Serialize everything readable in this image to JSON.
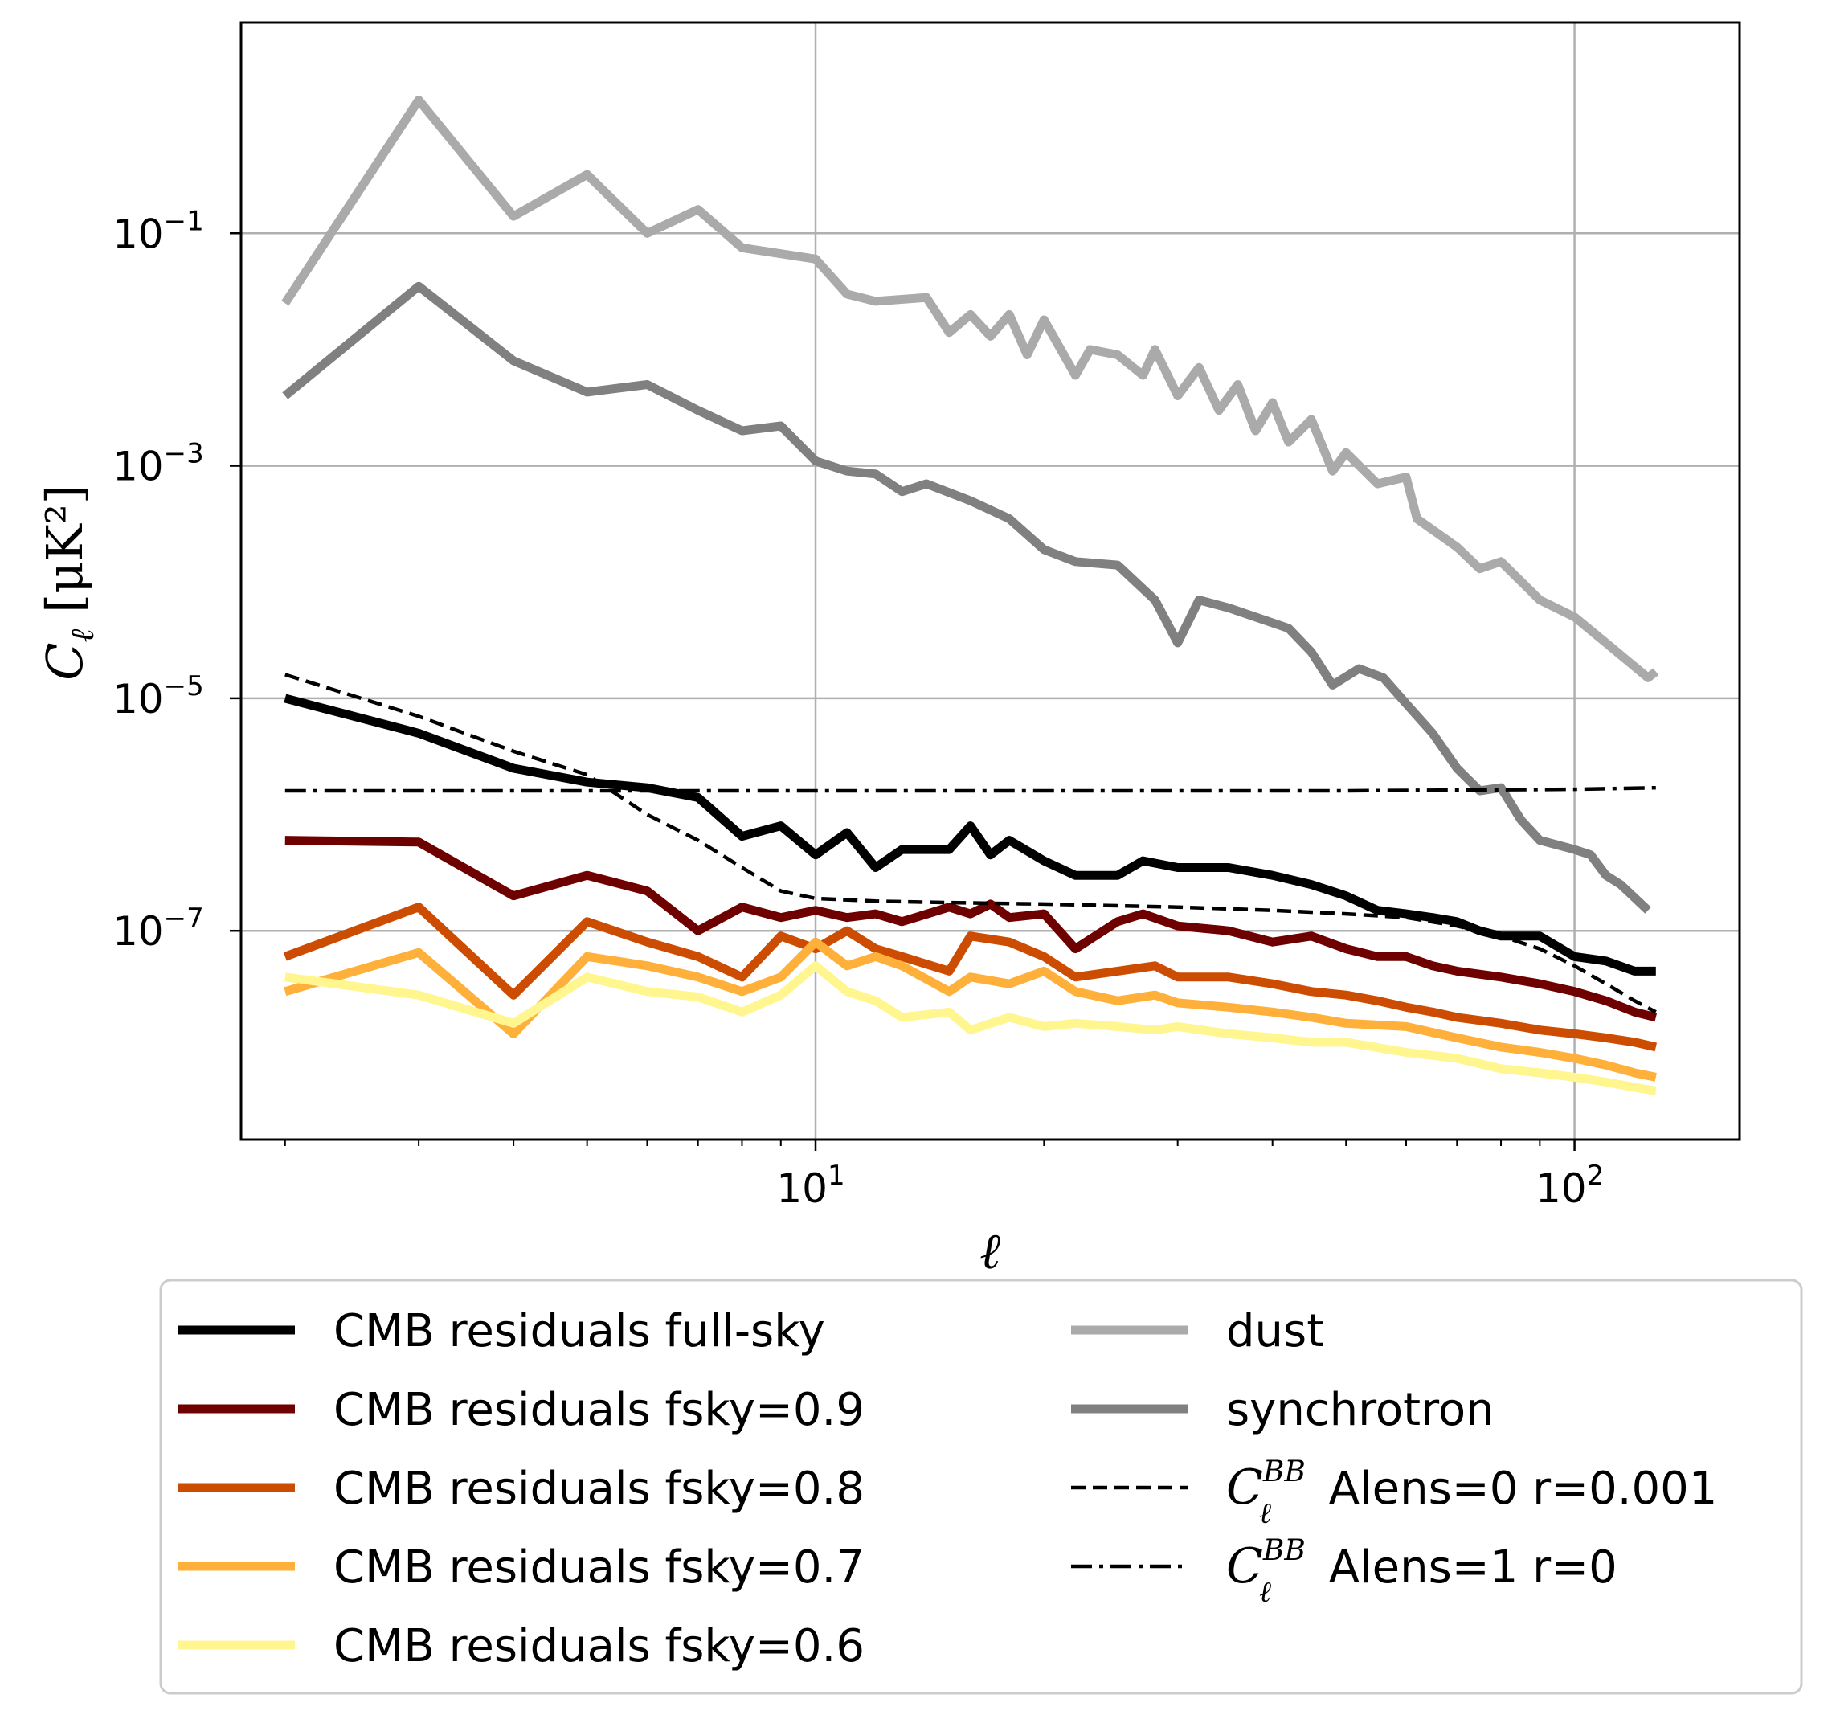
{
  "chart_data": {
    "type": "line",
    "xscale": "log",
    "yscale": "log",
    "xlim": [
      1.75,
      165
    ],
    "ylim": [
      1.6e-09,
      6.5
    ],
    "xlabel": "ℓ",
    "ylabel_main": "C",
    "ylabel_sub": "ℓ",
    "ylabel_rest": " [μK²]",
    "grid": true,
    "legend_location": "below",
    "x_ticks": [
      {
        "value": 10,
        "base": "10",
        "exp": "1"
      },
      {
        "value": 100,
        "base": "10",
        "exp": "2"
      }
    ],
    "y_ticks": [
      {
        "value": 0.1,
        "base": "10",
        "exp": "−1"
      },
      {
        "value": 0.001,
        "base": "10",
        "exp": "−3"
      },
      {
        "value": 1e-05,
        "base": "10",
        "exp": "−5"
      },
      {
        "value": 1e-07,
        "base": "10",
        "exp": "−7"
      }
    ],
    "series": [
      {
        "name": "dust",
        "color": "#aaaaaa",
        "style": "solid",
        "width": 11,
        "points": [
          [
            2,
            0.025
          ],
          [
            3,
            1.4
          ],
          [
            4,
            0.14
          ],
          [
            5,
            0.32
          ],
          [
            6,
            0.1
          ],
          [
            7,
            0.16
          ],
          [
            8,
            0.075
          ],
          [
            10,
            0.06
          ],
          [
            11,
            0.03
          ],
          [
            12,
            0.026
          ],
          [
            14,
            0.028
          ],
          [
            15,
            0.014
          ],
          [
            16,
            0.02
          ],
          [
            17,
            0.013
          ],
          [
            18,
            0.02
          ],
          [
            19,
            0.009
          ],
          [
            20,
            0.018
          ],
          [
            22,
            0.006
          ],
          [
            23,
            0.01
          ],
          [
            25,
            0.009
          ],
          [
            27,
            0.006
          ],
          [
            28,
            0.01
          ],
          [
            30,
            0.004
          ],
          [
            32,
            0.007
          ],
          [
            34,
            0.003
          ],
          [
            36,
            0.005
          ],
          [
            38,
            0.002
          ],
          [
            40,
            0.0035
          ],
          [
            42,
            0.0016
          ],
          [
            45,
            0.0025
          ],
          [
            48,
            0.0009
          ],
          [
            50,
            0.0013
          ],
          [
            55,
            0.0007
          ],
          [
            60,
            0.0008
          ],
          [
            62,
            0.00035
          ],
          [
            70,
            0.0002
          ],
          [
            75,
            0.00013
          ],
          [
            80,
            0.00015
          ],
          [
            90,
            7e-05
          ],
          [
            100,
            5e-05
          ],
          [
            110,
            3e-05
          ],
          [
            125,
            1.5e-05
          ],
          [
            128,
            1.7e-05
          ]
        ]
      },
      {
        "name": "synchrotron",
        "color": "#808080",
        "style": "solid",
        "width": 11,
        "points": [
          [
            2,
            0.004
          ],
          [
            3,
            0.035
          ],
          [
            4,
            0.008
          ],
          [
            5,
            0.0043
          ],
          [
            6,
            0.005
          ],
          [
            7,
            0.003
          ],
          [
            8,
            0.002
          ],
          [
            9,
            0.0022
          ],
          [
            10,
            0.0011
          ],
          [
            11,
            0.0009
          ],
          [
            12,
            0.00085
          ],
          [
            13,
            0.0006
          ],
          [
            14,
            0.0007
          ],
          [
            16,
            0.0005
          ],
          [
            18,
            0.00035
          ],
          [
            20,
            0.00019
          ],
          [
            22,
            0.00015
          ],
          [
            25,
            0.00014
          ],
          [
            28,
            7e-05
          ],
          [
            30,
            3e-05
          ],
          [
            32,
            7e-05
          ],
          [
            35,
            6e-05
          ],
          [
            38,
            5e-05
          ],
          [
            42,
            4e-05
          ],
          [
            45,
            2.5e-05
          ],
          [
            48,
            1.3e-05
          ],
          [
            52,
            1.8e-05
          ],
          [
            56,
            1.5e-05
          ],
          [
            60,
            9e-06
          ],
          [
            65,
            5e-06
          ],
          [
            70,
            2.5e-06
          ],
          [
            75,
            1.6e-06
          ],
          [
            80,
            1.7e-06
          ],
          [
            85,
            9e-07
          ],
          [
            90,
            6e-07
          ],
          [
            100,
            5e-07
          ],
          [
            105,
            4.5e-07
          ],
          [
            110,
            3e-07
          ],
          [
            115,
            2.5e-07
          ],
          [
            125,
            1.5e-07
          ]
        ]
      },
      {
        "name": "CMB residuals full-sky",
        "color": "#000000",
        "style": "solid",
        "width": 11,
        "points": [
          [
            2,
            1e-05
          ],
          [
            3,
            5e-06
          ],
          [
            4,
            2.5e-06
          ],
          [
            5,
            1.9e-06
          ],
          [
            6,
            1.7e-06
          ],
          [
            7,
            1.4e-06
          ],
          [
            8,
            6.5e-07
          ],
          [
            9,
            8e-07
          ],
          [
            10,
            4.5e-07
          ],
          [
            11,
            7e-07
          ],
          [
            12,
            3.5e-07
          ],
          [
            13,
            5e-07
          ],
          [
            15,
            5e-07
          ],
          [
            16,
            8e-07
          ],
          [
            17,
            4.5e-07
          ],
          [
            18,
            6e-07
          ],
          [
            20,
            4e-07
          ],
          [
            22,
            3e-07
          ],
          [
            25,
            3e-07
          ],
          [
            27,
            4e-07
          ],
          [
            30,
            3.5e-07
          ],
          [
            35,
            3.5e-07
          ],
          [
            40,
            3e-07
          ],
          [
            45,
            2.5e-07
          ],
          [
            50,
            2e-07
          ],
          [
            55,
            1.5e-07
          ],
          [
            60,
            1.4e-07
          ],
          [
            65,
            1.3e-07
          ],
          [
            70,
            1.2e-07
          ],
          [
            75,
            1e-07
          ],
          [
            80,
            9e-08
          ],
          [
            90,
            9e-08
          ],
          [
            100,
            6e-08
          ],
          [
            110,
            5.5e-08
          ],
          [
            120,
            4.5e-08
          ],
          [
            128,
            4.5e-08
          ]
        ]
      },
      {
        "name": "CMB residuals fsky=0.9",
        "color": "#6e0000",
        "style": "solid",
        "width": 11,
        "points": [
          [
            2,
            6e-07
          ],
          [
            3,
            5.8e-07
          ],
          [
            4,
            2e-07
          ],
          [
            5,
            3e-07
          ],
          [
            6,
            2.2e-07
          ],
          [
            7,
            1e-07
          ],
          [
            8,
            1.6e-07
          ],
          [
            9,
            1.3e-07
          ],
          [
            10,
            1.5e-07
          ],
          [
            11,
            1.3e-07
          ],
          [
            12,
            1.4e-07
          ],
          [
            13,
            1.2e-07
          ],
          [
            15,
            1.6e-07
          ],
          [
            16,
            1.4e-07
          ],
          [
            17,
            1.7e-07
          ],
          [
            18,
            1.3e-07
          ],
          [
            20,
            1.4e-07
          ],
          [
            22,
            7e-08
          ],
          [
            25,
            1.2e-07
          ],
          [
            27,
            1.4e-07
          ],
          [
            30,
            1.1e-07
          ],
          [
            35,
            1e-07
          ],
          [
            40,
            8e-08
          ],
          [
            45,
            9e-08
          ],
          [
            50,
            7e-08
          ],
          [
            55,
            6e-08
          ],
          [
            60,
            6e-08
          ],
          [
            65,
            5e-08
          ],
          [
            70,
            4.5e-08
          ],
          [
            80,
            4e-08
          ],
          [
            90,
            3.5e-08
          ],
          [
            100,
            3e-08
          ],
          [
            110,
            2.5e-08
          ],
          [
            120,
            2e-08
          ],
          [
            128,
            1.8e-08
          ]
        ]
      },
      {
        "name": "CMB residuals fsky=0.8",
        "color": "#cc4c02",
        "style": "solid",
        "width": 11,
        "points": [
          [
            2,
            6e-08
          ],
          [
            3,
            1.6e-07
          ],
          [
            4,
            2.8e-08
          ],
          [
            5,
            1.2e-07
          ],
          [
            6,
            8e-08
          ],
          [
            7,
            6e-08
          ],
          [
            8,
            4e-08
          ],
          [
            9,
            9e-08
          ],
          [
            10,
            7e-08
          ],
          [
            11,
            1e-07
          ],
          [
            12,
            7e-08
          ],
          [
            13,
            6e-08
          ],
          [
            15,
            4.5e-08
          ],
          [
            16,
            9e-08
          ],
          [
            18,
            8e-08
          ],
          [
            20,
            6e-08
          ],
          [
            22,
            4e-08
          ],
          [
            25,
            4.5e-08
          ],
          [
            28,
            5e-08
          ],
          [
            30,
            4e-08
          ],
          [
            35,
            4e-08
          ],
          [
            40,
            3.5e-08
          ],
          [
            45,
            3e-08
          ],
          [
            50,
            2.8e-08
          ],
          [
            55,
            2.5e-08
          ],
          [
            60,
            2.2e-08
          ],
          [
            65,
            2e-08
          ],
          [
            70,
            1.8e-08
          ],
          [
            80,
            1.6e-08
          ],
          [
            90,
            1.4e-08
          ],
          [
            100,
            1.3e-08
          ],
          [
            110,
            1.2e-08
          ],
          [
            120,
            1.1e-08
          ],
          [
            128,
            1e-08
          ]
        ]
      },
      {
        "name": "CMB residuals fsky=0.7",
        "color": "#feb03a",
        "style": "solid",
        "width": 11,
        "points": [
          [
            2,
            3e-08
          ],
          [
            3,
            6.5e-08
          ],
          [
            4,
            1.3e-08
          ],
          [
            5,
            6e-08
          ],
          [
            6,
            5e-08
          ],
          [
            7,
            4e-08
          ],
          [
            8,
            3e-08
          ],
          [
            9,
            4e-08
          ],
          [
            10,
            8e-08
          ],
          [
            11,
            5e-08
          ],
          [
            12,
            6e-08
          ],
          [
            13,
            5e-08
          ],
          [
            15,
            3e-08
          ],
          [
            16,
            4e-08
          ],
          [
            18,
            3.5e-08
          ],
          [
            20,
            4.5e-08
          ],
          [
            22,
            3e-08
          ],
          [
            25,
            2.5e-08
          ],
          [
            28,
            2.8e-08
          ],
          [
            30,
            2.4e-08
          ],
          [
            35,
            2.2e-08
          ],
          [
            40,
            2e-08
          ],
          [
            45,
            1.8e-08
          ],
          [
            50,
            1.6e-08
          ],
          [
            60,
            1.5e-08
          ],
          [
            70,
            1.2e-08
          ],
          [
            80,
            1e-08
          ],
          [
            90,
            9e-09
          ],
          [
            100,
            8e-09
          ],
          [
            110,
            7e-09
          ],
          [
            120,
            6e-09
          ],
          [
            128,
            5.5e-09
          ]
        ]
      },
      {
        "name": "CMB residuals fsky=0.6",
        "color": "#fff68f",
        "style": "solid",
        "width": 11,
        "points": [
          [
            2,
            4e-08
          ],
          [
            3,
            2.8e-08
          ],
          [
            4,
            1.6e-08
          ],
          [
            5,
            4e-08
          ],
          [
            6,
            3e-08
          ],
          [
            7,
            2.7e-08
          ],
          [
            8,
            2e-08
          ],
          [
            9,
            2.8e-08
          ],
          [
            10,
            5e-08
          ],
          [
            11,
            3e-08
          ],
          [
            12,
            2.5e-08
          ],
          [
            13,
            1.8e-08
          ],
          [
            15,
            2e-08
          ],
          [
            16,
            1.4e-08
          ],
          [
            18,
            1.8e-08
          ],
          [
            20,
            1.5e-08
          ],
          [
            22,
            1.6e-08
          ],
          [
            25,
            1.5e-08
          ],
          [
            28,
            1.4e-08
          ],
          [
            30,
            1.5e-08
          ],
          [
            35,
            1.3e-08
          ],
          [
            40,
            1.2e-08
          ],
          [
            45,
            1.1e-08
          ],
          [
            50,
            1.1e-08
          ],
          [
            60,
            9e-09
          ],
          [
            70,
            8e-09
          ],
          [
            80,
            6.5e-09
          ],
          [
            90,
            6e-09
          ],
          [
            100,
            5.5e-09
          ],
          [
            110,
            5e-09
          ],
          [
            120,
            4.5e-09
          ],
          [
            128,
            4.2e-09
          ]
        ]
      },
      {
        "name": "Alens=0 r=0.001",
        "color": "#000000",
        "style": "dashed",
        "width": 4.5,
        "points": [
          [
            2,
            1.6e-05
          ],
          [
            3,
            7e-06
          ],
          [
            4,
            3.5e-06
          ],
          [
            5,
            2.2e-06
          ],
          [
            6,
            1e-06
          ],
          [
            7,
            6e-07
          ],
          [
            8,
            3.5e-07
          ],
          [
            9,
            2.2e-07
          ],
          [
            10,
            1.9e-07
          ],
          [
            12,
            1.8e-07
          ],
          [
            15,
            1.75e-07
          ],
          [
            20,
            1.7e-07
          ],
          [
            30,
            1.6e-07
          ],
          [
            40,
            1.5e-07
          ],
          [
            50,
            1.4e-07
          ],
          [
            60,
            1.3e-07
          ],
          [
            70,
            1.1e-07
          ],
          [
            80,
            9e-08
          ],
          [
            90,
            7e-08
          ],
          [
            100,
            5e-08
          ],
          [
            110,
            3.5e-08
          ],
          [
            120,
            2.5e-08
          ],
          [
            128,
            2e-08
          ]
        ]
      },
      {
        "name": "Alens=1 r=0",
        "color": "#000000",
        "style": "dashdot",
        "width": 4.5,
        "points": [
          [
            2,
            1.6e-06
          ],
          [
            10,
            1.6e-06
          ],
          [
            50,
            1.6e-06
          ],
          [
            100,
            1.65e-06
          ],
          [
            128,
            1.7e-06
          ]
        ]
      }
    ]
  },
  "legend": {
    "left": [
      {
        "label": "CMB residuals full-sky",
        "color": "#000000"
      },
      {
        "label": "CMB residuals fsky=0.9",
        "color": "#6e0000"
      },
      {
        "label": "CMB residuals fsky=0.8",
        "color": "#cc4c02"
      },
      {
        "label": "CMB residuals fsky=0.7",
        "color": "#feb03a"
      },
      {
        "label": "CMB residuals fsky=0.6",
        "color": "#fff68f"
      }
    ],
    "right": [
      {
        "label": "dust",
        "color": "#aaaaaa"
      },
      {
        "label": "synchrotron",
        "color": "#808080"
      },
      {
        "sym": "C",
        "sub": "ℓ",
        "sup": "BB",
        "label": " Alens=0 r=0.001"
      },
      {
        "sym": "C",
        "sub": "ℓ",
        "sup": "BB",
        "label": " Alens=1 r=0"
      }
    ]
  }
}
